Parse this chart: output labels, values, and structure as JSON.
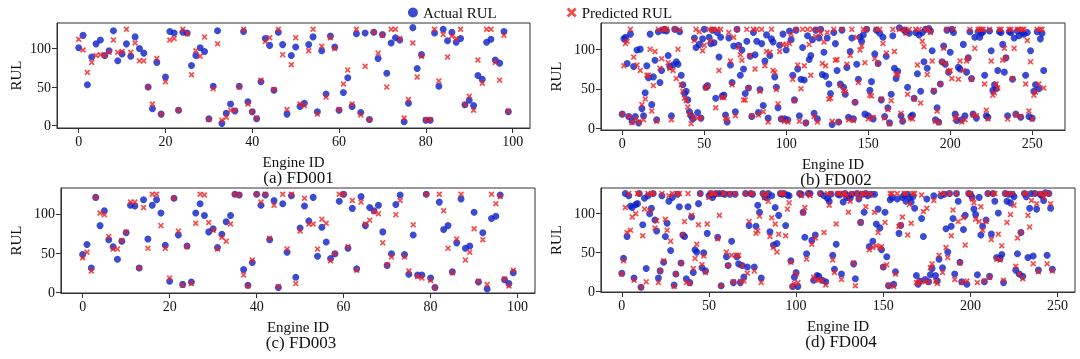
{
  "chart_data": [
    {
      "type": "scatter",
      "title": "(a) FD001",
      "xlabel": "Engine ID",
      "ylabel": "RUL",
      "legend": "top",
      "xlim": [
        -5,
        104
      ],
      "xticks": [
        0,
        20,
        40,
        60,
        80,
        100
      ],
      "ylim": [
        -3,
        133
      ],
      "yticks": [
        0,
        50,
        100
      ],
      "x": [
        0,
        1,
        2,
        3,
        4,
        5,
        6,
        7,
        8,
        9,
        10,
        11,
        12,
        13,
        14,
        15,
        16,
        17,
        18,
        19,
        20,
        21,
        22,
        23,
        24,
        25,
        26,
        27,
        28,
        29,
        30,
        31,
        32,
        33,
        34,
        35,
        36,
        37,
        38,
        39,
        40,
        41,
        42,
        43,
        44,
        45,
        46,
        47,
        48,
        49,
        50,
        51,
        52,
        53,
        54,
        55,
        56,
        57,
        58,
        59,
        60,
        61,
        62,
        63,
        64,
        65,
        66,
        67,
        68,
        69,
        70,
        71,
        72,
        73,
        74,
        75,
        76,
        77,
        78,
        79,
        80,
        81,
        82,
        83,
        84,
        85,
        86,
        87,
        88,
        89,
        90,
        91,
        92,
        93,
        94,
        95,
        96,
        97,
        98,
        99
      ],
      "series": [
        {
          "name": "Actual RUL",
          "color": "#0a1fc8",
          "marker": "circle",
          "values": [
            101,
            117,
            53,
            89,
            106,
            111,
            91,
            97,
            123,
            84,
            93,
            106,
            90,
            115,
            100,
            94,
            50,
            22,
            82,
            15,
            63,
            122,
            120,
            20,
            121,
            120,
            78,
            91,
            101,
            96,
            9,
            51,
            123,
            3,
            16,
            28,
            19,
            51,
            122,
            31,
            18,
            9,
            57,
            113,
            104,
            46,
            121,
            105,
            15,
            91,
            102,
            25,
            29,
            105,
            115,
            18,
            97,
            41,
            116,
            102,
            20,
            43,
            62,
            25,
            119,
            17,
            120,
            8,
            121,
            87,
            118,
            68,
            107,
            114,
            111,
            5,
            29,
            127,
            74,
            92,
            7,
            7,
            120,
            51,
            125,
            110,
            121,
            108,
            113,
            27,
            33,
            26,
            65,
            60,
            108,
            112,
            85,
            81,
            122,
            18
          ]
        },
        {
          "name": "Predicted RUL",
          "color": "#f02020",
          "marker": "cross",
          "values": [
            112,
            98,
            69,
            82,
            91,
            92,
            91,
            95,
            111,
            95,
            96,
            125,
            95,
            107,
            84,
            84,
            50,
            28,
            87,
            15,
            57,
            111,
            113,
            20,
            125,
            119,
            66,
            97,
            90,
            115,
            8,
            48,
            106,
            7,
            11,
            20,
            20,
            50,
            125,
            28,
            18,
            10,
            59,
            109,
            114,
            47,
            125,
            92,
            21,
            79,
            114,
            28,
            26,
            97,
            125,
            15,
            103,
            37,
            114,
            100,
            21,
            54,
            72,
            28,
            125,
            14,
            77,
            8,
            121,
            94,
            117,
            50,
            125,
            125,
            113,
            10,
            34,
            107,
            63,
            90,
            8,
            8,
            125,
            58,
            118,
            89,
            116,
            113,
            125,
            27,
            38,
            20,
            85,
            55,
            125,
            125,
            82,
            59,
            117,
            19
          ]
        }
      ]
    },
    {
      "type": "scatter",
      "title": "(b) FD002",
      "xlabel": "Engine ID",
      "ylabel": "RUL",
      "xlim": [
        -13,
        270
      ],
      "xticks": [
        0,
        50,
        100,
        150,
        200,
        250
      ],
      "ylim": [
        -2,
        133
      ],
      "yticks": [
        0,
        50,
        100
      ],
      "x": [
        0,
        1,
        2,
        3,
        4,
        5,
        6,
        7,
        8,
        9,
        10,
        11,
        12,
        13,
        14,
        15,
        16,
        17,
        18,
        19,
        20,
        21,
        22,
        23,
        24,
        25,
        26,
        27,
        28,
        29,
        30,
        31,
        32,
        33,
        34,
        35,
        36,
        37,
        38,
        39,
        40,
        41,
        42,
        43,
        44,
        45,
        46,
        47,
        48,
        49,
        50,
        51,
        52,
        53,
        54,
        55,
        56,
        57,
        58,
        59,
        60,
        61,
        62,
        63,
        64,
        65,
        66,
        67,
        68,
        69,
        70,
        71,
        72,
        73,
        74,
        75,
        76,
        77,
        78,
        79,
        80,
        81,
        82,
        83,
        84,
        85,
        86,
        87,
        88,
        89,
        90,
        91,
        92,
        93,
        94,
        95,
        96,
        97,
        98,
        99,
        100,
        101,
        102,
        103,
        104,
        105,
        106,
        107,
        108,
        109,
        110,
        111,
        112,
        113,
        114,
        115,
        116,
        117,
        118,
        119,
        120,
        121,
        122,
        123,
        124,
        125,
        126,
        127,
        128,
        129,
        130,
        131,
        132,
        133,
        134,
        135,
        136,
        137,
        138,
        139,
        140,
        141,
        142,
        143,
        144,
        145,
        146,
        147,
        148,
        149,
        150,
        151,
        152,
        153,
        154,
        155,
        156,
        157,
        158,
        159,
        160,
        161,
        162,
        163,
        164,
        165,
        166,
        167,
        168,
        169,
        170,
        171,
        172,
        173,
        174,
        175,
        176,
        177,
        178,
        179,
        180,
        181,
        182,
        183,
        184,
        185,
        186,
        187,
        188,
        189,
        190,
        191,
        192,
        193,
        194,
        195,
        196,
        197,
        198,
        199,
        200,
        201,
        202,
        203,
        204,
        205,
        206,
        207,
        208,
        209,
        210,
        211,
        212,
        213,
        214,
        215,
        216,
        217,
        218,
        219,
        220,
        221,
        222,
        223,
        224,
        225,
        226,
        227,
        228,
        229,
        230,
        231,
        232,
        233,
        234,
        235,
        236,
        237,
        238,
        239,
        240,
        241,
        242,
        243,
        244,
        245,
        246,
        247,
        248,
        249,
        250,
        251,
        252,
        253,
        254,
        255,
        256,
        257
      ],
      "series": [
        {
          "color": "#0a1fc8",
          "marker": "circle",
          "values": [
            18,
            113,
            115,
            82,
            15,
            119,
            9,
            78,
            15,
            99,
            7,
            100,
            25,
            16,
            45,
            79,
            64,
            119,
            30,
            65,
            86,
            11,
            122,
            58,
            73,
            124,
            125,
            123,
            92,
            78,
            16,
            80,
            125,
            84,
            81,
            122,
            67,
            55,
            44,
            47,
            36,
            21,
            16,
            12,
            114,
            102,
            20,
            106,
            13,
            113,
            125,
            52,
            54,
            115,
            107,
            124,
            108,
            38,
            121,
            90,
            115,
            41,
            42,
            17,
            8,
            114,
            80,
            58,
            104,
            21,
            125,
            105,
            67,
            99,
            75,
            44,
            110,
            51,
            91,
            15,
            121,
            93,
            110,
            20,
            49,
            107,
            29,
            85,
            118,
            13,
            92,
            113,
            109,
            65,
            52,
            26,
            105,
            12,
            119,
            12,
            99,
            11,
            123,
            112,
            67,
            36,
            124,
            75,
            16,
            62,
            102,
            61,
            7,
            117,
            87,
            92,
            112,
            19,
            124,
            12,
            114,
            125,
            68,
            96,
            66,
            114,
            56,
            44,
            5,
            121,
            107,
            73,
            8,
            56,
            124,
            52,
            43,
            77,
            14,
            97,
            114,
            12,
            33,
            81,
            62,
            115,
            110,
            118,
            18,
            125,
            16,
            48,
            59,
            12,
            94,
            124,
            82,
            120,
            36,
            115,
            15,
            91,
            26,
            7,
            43,
            117,
            76,
            63,
            72,
            127,
            16,
            9,
            124,
            122,
            52,
            120,
            15,
            17,
            38,
            121,
            69,
            118,
            47,
            121,
            84,
            125,
            76,
            126,
            123,
            98,
            47,
            11,
            26,
            8,
            56,
            84,
            104,
            81,
            124,
            71,
            96,
            125,
            121,
            18,
            10,
            77,
            75,
            11,
            106,
            16,
            71,
            89,
            122,
            63,
            18,
            115,
            13,
            122,
            115,
            120,
            122,
            67,
            16,
            14,
            123,
            98,
            48,
            55,
            50,
            73,
            122,
            121,
            106,
            71,
            89,
            16,
            122,
            121,
            62,
            114,
            18,
            123,
            117,
            14,
            121,
            119,
            67,
            121,
            15,
            98,
            13,
            47,
            55,
            122,
            50,
            113,
            120,
            73
          ]
        },
        {
          "color": "#f02020",
          "marker": "cross",
          "values": [
            18,
            79,
            107,
            110,
            15,
            125,
            7,
            90,
            12,
            80,
            8,
            73,
            30,
            11,
            37,
            67,
            67,
            100,
            22,
            54,
            97,
            9,
            125,
            76,
            88,
            125,
            125,
            125,
            83,
            76,
            11,
            73,
            125,
            63,
            100,
            125,
            55,
            47,
            38,
            35,
            27,
            18,
            6,
            14,
            111,
            125,
            13,
            122,
            13,
            98,
            105,
            51,
            53,
            125,
            110,
            125,
            124,
            26,
            125,
            73,
            125,
            39,
            39,
            13,
            11,
            121,
            85,
            55,
            115,
            16,
            125,
            102,
            93,
            86,
            36,
            36,
            125,
            51,
            92,
            16,
            125,
            75,
            125,
            17,
            47,
            125,
            21,
            79,
            97,
            8,
            96,
            125,
            73,
            71,
            49,
            31,
            97,
            12,
            106,
            9,
            106,
            8,
            107,
            119,
            62,
            35,
            125,
            80,
            9,
            50,
            125,
            79,
            7,
            125,
            106,
            67,
            125,
            15,
            116,
            8,
            125,
            120,
            82,
            109,
            79,
            121,
            37,
            38,
            9,
            125,
            86,
            87,
            8,
            54,
            125,
            48,
            46,
            81,
            11,
            92,
            125,
            10,
            33,
            115,
            58,
            99,
            104,
            125,
            83,
            125,
            12,
            42,
            41,
            14,
            88,
            125,
            82,
            125,
            37,
            107,
            13,
            95,
            24,
            6,
            35,
            125,
            97,
            68,
            68,
            125,
            19,
            10,
            125,
            120,
            43,
            125,
            13,
            12,
            37,
            125,
            80,
            125,
            32,
            110,
            103,
            125,
            68,
            125,
            121,
            85,
            48,
            9,
            22,
            7,
            56,
            84,
            101,
            82,
            125,
            72,
            73,
            63,
            125,
            12,
            15,
            62,
            85,
            8,
            73,
            11,
            85,
            89,
            125,
            62,
            17,
            101,
            16,
            125,
            125,
            125,
            125,
            56,
            23,
            12,
            125,
            85,
            42,
            45,
            56,
            51,
            125,
            125,
            86,
            101,
            89,
            12,
            125,
            125,
            63,
            101,
            17,
            125,
            125,
            15,
            125,
            125,
            56,
            111,
            22,
            84,
            12,
            42,
            46,
            125,
            56,
            125,
            125,
            51
          ]
        }
      ]
    },
    {
      "type": "scatter",
      "title": "(c) FD003",
      "xlabel": "Engine ID",
      "ylabel": "RUL",
      "xlim": [
        -5,
        104
      ],
      "xticks": [
        0,
        20,
        40,
        60,
        80,
        100
      ],
      "ylim": [
        -1,
        133
      ],
      "yticks": [
        0,
        50,
        100
      ],
      "x": [
        0,
        1,
        2,
        3,
        4,
        5,
        6,
        7,
        8,
        9,
        10,
        11,
        12,
        13,
        14,
        15,
        16,
        17,
        18,
        19,
        20,
        21,
        22,
        23,
        24,
        25,
        26,
        27,
        28,
        29,
        30,
        31,
        32,
        33,
        34,
        35,
        36,
        37,
        38,
        39,
        40,
        41,
        42,
        43,
        44,
        45,
        46,
        47,
        48,
        49,
        50,
        51,
        52,
        53,
        54,
        55,
        56,
        57,
        58,
        59,
        60,
        61,
        62,
        63,
        64,
        65,
        66,
        67,
        68,
        69,
        70,
        71,
        72,
        73,
        74,
        75,
        76,
        77,
        78,
        79,
        80,
        81,
        82,
        83,
        84,
        85,
        86,
        87,
        88,
        89,
        90,
        91,
        92,
        93,
        94,
        95,
        96,
        97,
        98,
        99
      ],
      "series": [
        {
          "color": "#0a1fc8",
          "marker": "circle",
          "values": [
            48,
            61,
            31,
            121,
            85,
            104,
            67,
            58,
            42,
            65,
            76,
            111,
            110,
            31,
            118,
            68,
            111,
            118,
            101,
            60,
            14,
            120,
            73,
            10,
            59,
            13,
            101,
            113,
            98,
            77,
            81,
            57,
            74,
            90,
            98,
            125,
            124,
            29,
            9,
            38,
            125,
            111,
            124,
            67,
            117,
            6,
            113,
            51,
            123,
            19,
            82,
            110,
            91,
            121,
            46,
            83,
            64,
            43,
            49,
            116,
            125,
            56,
            107,
            30,
            122,
            85,
            108,
            104,
            111,
            77,
            34,
            49,
            112,
            124,
            48,
            23,
            73,
            22,
            22,
            125,
            18,
            6,
            115,
            80,
            85,
            26,
            63,
            119,
            56,
            59,
            102,
            13,
            76,
            4,
            94,
            97,
            124,
            16,
            11,
            25
          ]
        },
        {
          "color": "#f02020",
          "marker": "cross",
          "values": [
            44,
            51,
            27,
            121,
            101,
            99,
            71,
            55,
            55,
            66,
            77,
            115,
            115,
            31,
            108,
            56,
            125,
            125,
            85,
            56,
            18,
            120,
            78,
            9,
            58,
            11,
            88,
            125,
            124,
            89,
            79,
            55,
            70,
            65,
            87,
            125,
            124,
            22,
            8,
            41,
            125,
            115,
            125,
            69,
            111,
            7,
            125,
            55,
            125,
            11,
            78,
            120,
            87,
            87,
            55,
            93,
            88,
            40,
            49,
            125,
            125,
            58,
            117,
            28,
            115,
            87,
            92,
            103,
            100,
            63,
            35,
            45,
            99,
            117,
            45,
            27,
            86,
            20,
            18,
            125,
            15,
            6,
            125,
            104,
            56,
            25,
            68,
            125,
            41,
            51,
            81,
            14,
            67,
            10,
            125,
            113,
            122,
            17,
            8,
            28
          ]
        }
      ]
    },
    {
      "type": "scatter",
      "title": "(d) FD004",
      "xlabel": "Engine ID",
      "ylabel": "RUL",
      "xlim": [
        -12,
        260
      ],
      "xticks": [
        0,
        50,
        100,
        150,
        200,
        250
      ],
      "ylim": [
        -1,
        132
      ],
      "yticks": [
        0,
        50,
        100
      ],
      "x": [
        0,
        1,
        2,
        3,
        4,
        5,
        6,
        7,
        8,
        9,
        10,
        11,
        12,
        13,
        14,
        15,
        16,
        17,
        18,
        19,
        20,
        21,
        22,
        23,
        24,
        25,
        26,
        27,
        28,
        29,
        30,
        31,
        32,
        33,
        34,
        35,
        36,
        37,
        38,
        39,
        40,
        41,
        42,
        43,
        44,
        45,
        46,
        47,
        48,
        49,
        50,
        51,
        52,
        53,
        54,
        55,
        56,
        57,
        58,
        59,
        60,
        61,
        62,
        63,
        64,
        65,
        66,
        67,
        68,
        69,
        70,
        71,
        72,
        73,
        74,
        75,
        76,
        77,
        78,
        79,
        80,
        81,
        82,
        83,
        84,
        85,
        86,
        87,
        88,
        89,
        90,
        91,
        92,
        93,
        94,
        95,
        96,
        97,
        98,
        99,
        100,
        101,
        102,
        103,
        104,
        105,
        106,
        107,
        108,
        109,
        110,
        111,
        112,
        113,
        114,
        115,
        116,
        117,
        118,
        119,
        120,
        121,
        122,
        123,
        124,
        125,
        126,
        127,
        128,
        129,
        130,
        131,
        132,
        133,
        134,
        135,
        136,
        137,
        138,
        139,
        140,
        141,
        142,
        143,
        144,
        145,
        146,
        147,
        148,
        149,
        150,
        151,
        152,
        153,
        154,
        155,
        156,
        157,
        158,
        159,
        160,
        161,
        162,
        163,
        164,
        165,
        166,
        167,
        168,
        169,
        170,
        171,
        172,
        173,
        174,
        175,
        176,
        177,
        178,
        179,
        180,
        181,
        182,
        183,
        184,
        185,
        186,
        187,
        188,
        189,
        190,
        191,
        192,
        193,
        194,
        195,
        196,
        197,
        198,
        199,
        200,
        201,
        202,
        203,
        204,
        205,
        206,
        207,
        208,
        209,
        210,
        211,
        212,
        213,
        214,
        215,
        216,
        217,
        218,
        219,
        220,
        221,
        222,
        223,
        224,
        225,
        226,
        227,
        228,
        229,
        230,
        231,
        232,
        233,
        234,
        235,
        236,
        237,
        238,
        239,
        240,
        241,
        242,
        243,
        244,
        245,
        246,
        247
      ],
      "series": [
        {
          "color": "#0a1fc8",
          "marker": "circle",
          "values": [
            23,
            42,
            125,
            70,
            122,
            109,
            107,
            17,
            111,
            112,
            125,
            5,
            85,
            119,
            29,
            122,
            99,
            106,
            125,
            91,
            77,
            17,
            26,
            122,
            37,
            70,
            87,
            115,
            52,
            120,
            8,
            22,
            124,
            108,
            36,
            72,
            70,
            16,
            108,
            11,
            95,
            24,
            53,
            50,
            112,
            125,
            30,
            49,
            26,
            74,
            122,
            125,
            120,
            124,
            125,
            69,
            125,
            7,
            125,
            124,
            44,
            33,
            124,
            64,
            11,
            124,
            44,
            35,
            11,
            33,
            18,
            125,
            31,
            84,
            125,
            124,
            31,
            83,
            110,
            101,
            17,
            125,
            121,
            120,
            125,
            76,
            122,
            59,
            107,
            61,
            97,
            125,
            124,
            125,
            84,
            123,
            122,
            39,
            6,
            18,
            24,
            6,
            125,
            124,
            101,
            69,
            48,
            125,
            125,
            65,
            14,
            72,
            20,
            19,
            125,
            14,
            122,
            12,
            119,
            115,
            124,
            46,
            28,
            60,
            124,
            123,
            22,
            114,
            125,
            120,
            122,
            119,
            124,
            35,
            16,
            125,
            118,
            88,
            124,
            101,
            125,
            122,
            57,
            124,
            64,
            124,
            86,
            105,
            81,
            53,
            31,
            101,
            44,
            7,
            117,
            120,
            9,
            25,
            118,
            74,
            84,
            120,
            123,
            115,
            124,
            120,
            114,
            121,
            106,
            20,
            9,
            13,
            93,
            70,
            15,
            118,
            12,
            21,
            29,
            122,
            20,
            13,
            41,
            122,
            30,
            124,
            80,
            50,
            125,
            83,
            93,
            22,
            125,
            115,
            37,
            12,
            79,
            97,
            9,
            125,
            124,
            120,
            105,
            98,
            21,
            120,
            72,
            83,
            12,
            91,
            125,
            19,
            73,
            125,
            115,
            43,
            100,
            42,
            47,
            11,
            125,
            115,
            124,
            113,
            124,
            121,
            27,
            48,
            22,
            75,
            19,
            125,
            121,
            43,
            106,
            125,
            45,
            125,
            105,
            27,
            124,
            122,
            116,
            126,
            46,
            125,
            106,
            28
          ]
        },
        {
          "color": "#f02020",
          "marker": "cross",
          "values": [
            22,
            39,
            107,
            75,
            125,
            78,
            95,
            14,
            99,
            125,
            125,
            5,
            71,
            105,
            12,
            125,
            103,
            125,
            125,
            81,
            90,
            11,
            26,
            125,
            39,
            92,
            78,
            122,
            64,
            125,
            6,
            22,
            125,
            125,
            36,
            72,
            89,
            11,
            125,
            10,
            97,
            29,
            42,
            60,
            85,
            125,
            34,
            45,
            24,
            86,
            120,
            125,
            125,
            125,
            125,
            67,
            97,
            7,
            125,
            125,
            50,
            33,
            125,
            46,
            12,
            125,
            46,
            46,
            12,
            33,
            13,
            125,
            23,
            89,
            125,
            125,
            26,
            74,
            77,
            96,
            11,
            125,
            120,
            125,
            115,
            70,
            94,
            56,
            86,
            50,
            73,
            125,
            125,
            125,
            71,
            105,
            113,
            37,
            6,
            10,
            22,
            11,
            125,
            122,
            100,
            107,
            41,
            125,
            122,
            60,
            18,
            68,
            15,
            14,
            125,
            13,
            75,
            8,
            125,
            110,
            125,
            40,
            24,
            86,
            125,
            125,
            15,
            125,
            125,
            122,
            101,
            115,
            125,
            36,
            7,
            125,
            119,
            88,
            125,
            125,
            108,
            125,
            53,
            124,
            56,
            101,
            58,
            75,
            56,
            57,
            31,
            88,
            34,
            8,
            125,
            125,
            6,
            22,
            125,
            83,
            85,
            95,
            125,
            125,
            72,
            111,
            87,
            125,
            125,
            11,
            11,
            12,
            123,
            102,
            12,
            106,
            12,
            30,
            35,
            116,
            13,
            10,
            46,
            125,
            24,
            125,
            56,
            43,
            125,
            71,
            104,
            15,
            125,
            89,
            36,
            11,
            94,
            59,
            13,
            125,
            125,
            118,
            113,
            92,
            11,
            89,
            108,
            78,
            13,
            89,
            125,
            18,
            66,
            125,
            125,
            41,
            73,
            40,
            58,
            14,
            125,
            88,
            125,
            98,
            125,
            110,
            32,
            68,
            22,
            75,
            16,
            125,
            125,
            97,
            82,
            116,
            35,
            125,
            112,
            25,
            125,
            125,
            120,
            125,
            35,
            125,
            112,
            26
          ]
        }
      ]
    }
  ]
}
